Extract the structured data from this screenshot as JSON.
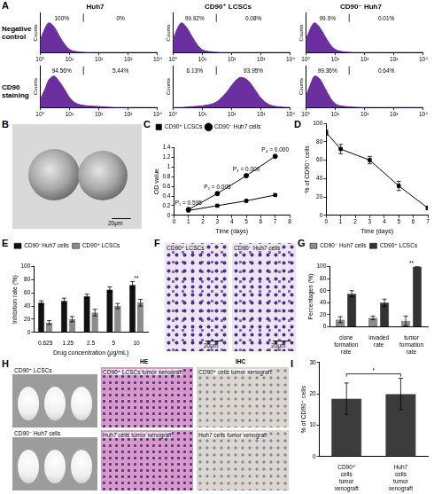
{
  "panel_letters": [
    "A",
    "B",
    "C",
    "D",
    "E",
    "F",
    "G",
    "H",
    "I"
  ],
  "flow_row_labels": [
    "Negative control",
    "CD90 staining"
  ],
  "images": {
    "B": {
      "scale_bar": "20μm"
    },
    "F": {
      "labels": [
        "CD90⁺ LCSCs",
        "CD90⁻ Huh7 cells"
      ],
      "scale_bar": "20μm"
    },
    "H": {
      "headers": [
        "HE",
        "IHC"
      ],
      "row_labels": [
        "CD90⁺ LCSCs",
        "CD90⁻ Huh7 cells"
      ],
      "captions": [
        [
          "CD90⁺ LCSCs tumor xenograft",
          "CD90⁺ cells tumor xenograft"
        ],
        [
          "Huh7 cells tumor xenograft",
          "Huh7 cells tumor xenograft"
        ]
      ]
    }
  },
  "chart_data": [
    {
      "type": "area",
      "title": "Huh7",
      "x": [
        1,
        1.5,
        2,
        3,
        4.5,
        7,
        10,
        15,
        25,
        40,
        70,
        120,
        200,
        350,
        600,
        1000,
        2000,
        5000,
        10000
      ],
      "values": [
        30,
        62,
        75,
        65,
        42,
        20,
        8,
        3,
        1,
        0,
        0,
        0,
        0,
        0,
        0,
        0,
        0,
        0,
        0
      ],
      "color": "#6b2fa0",
      "log": "x",
      "xlim": [
        1,
        10000
      ],
      "xticks": [
        {
          "value": 1,
          "label": "10⁰"
        },
        {
          "value": 10,
          "label": "10¹"
        },
        {
          "value": 100,
          "label": "10²"
        },
        {
          "value": 1000,
          "label": "10³"
        },
        {
          "value": 10000,
          "label": "10⁴"
        }
      ],
      "ylim": [
        0,
        100
      ],
      "yticks": [],
      "tick_labels": "x",
      "y_label": "Counts",
      "gate": 30,
      "annotations": [
        "100%",
        "0%"
      ],
      "grid": false
    },
    {
      "type": "area",
      "title": "CD90⁺ LCSCs",
      "x": [
        1,
        1.5,
        2,
        3,
        4.5,
        7,
        10,
        15,
        25,
        40,
        70,
        120,
        200,
        350,
        600,
        1000,
        2000,
        5000,
        10000
      ],
      "values": [
        32,
        64,
        75,
        62,
        40,
        18,
        7,
        3,
        1,
        0,
        0,
        0,
        0,
        0,
        0,
        0,
        0,
        0,
        0
      ],
      "color": "#6b2fa0",
      "log": "x",
      "xlim": [
        1,
        10000
      ],
      "xticks": [
        {
          "value": 1,
          "label": "10⁰"
        },
        {
          "value": 10,
          "label": "10¹"
        },
        {
          "value": 100,
          "label": "10²"
        },
        {
          "value": 1000,
          "label": "10³"
        },
        {
          "value": 10000,
          "label": "10⁴"
        }
      ],
      "ylim": [
        0,
        100
      ],
      "yticks": [],
      "tick_labels": "x",
      "y_label": "Counts",
      "gate": 30,
      "annotations": [
        "99.92%",
        "0.08%"
      ],
      "grid": false
    },
    {
      "type": "area",
      "title": "CD90⁻ Huh7",
      "x": [
        1,
        1.5,
        2,
        3,
        4.5,
        7,
        10,
        15,
        25,
        40,
        70,
        120,
        200,
        350,
        600,
        1000,
        2000,
        5000,
        10000
      ],
      "values": [
        31,
        63,
        75,
        63,
        41,
        19,
        8,
        3,
        1,
        0,
        0,
        0,
        0,
        0,
        0,
        0,
        0,
        0,
        0
      ],
      "color": "#6b2fa0",
      "log": "x",
      "xlim": [
        1,
        10000
      ],
      "xticks": [
        {
          "value": 1,
          "label": "10⁰"
        },
        {
          "value": 10,
          "label": "10¹"
        },
        {
          "value": 100,
          "label": "10²"
        },
        {
          "value": 1000,
          "label": "10³"
        },
        {
          "value": 10000,
          "label": "10⁴"
        }
      ],
      "ylim": [
        0,
        100
      ],
      "yticks": [],
      "tick_labels": "x",
      "y_label": "Counts",
      "gate": 30,
      "annotations": [
        "99.9%",
        "0.01%"
      ],
      "grid": false
    },
    {
      "type": "area",
      "x": [
        1,
        1.5,
        2,
        3,
        4.5,
        7,
        10,
        15,
        25,
        40,
        70,
        120,
        200,
        350,
        600,
        1000,
        2000,
        5000,
        10000
      ],
      "values": [
        18,
        45,
        66,
        75,
        62,
        42,
        24,
        12,
        6,
        4,
        3,
        2,
        1,
        0,
        0,
        0,
        0,
        0,
        0
      ],
      "color": "#6b2fa0",
      "log": "x",
      "xlim": [
        1,
        10000
      ],
      "xticks": [
        {
          "value": 1,
          "label": "10⁰"
        },
        {
          "value": 10,
          "label": "10¹"
        },
        {
          "value": 100,
          "label": "10²"
        },
        {
          "value": 1000,
          "label": "10³"
        },
        {
          "value": 10000,
          "label": "10⁴"
        }
      ],
      "ylim": [
        0,
        100
      ],
      "yticks": [],
      "tick_labels": "x",
      "y_label": "Counts",
      "gate": 30,
      "annotations": [
        "94.56%",
        "5.44%"
      ],
      "grid": false
    },
    {
      "type": "area",
      "x": [
        1,
        1.5,
        2,
        3,
        4.5,
        7,
        10,
        15,
        25,
        40,
        70,
        120,
        200,
        350,
        600,
        1000,
        2000,
        5000,
        10000
      ],
      "values": [
        0,
        0,
        0,
        1,
        2,
        3,
        4,
        6,
        10,
        20,
        38,
        60,
        72,
        65,
        44,
        22,
        6,
        1,
        0
      ],
      "color": "#6b2fa0",
      "log": "x",
      "xlim": [
        1,
        10000
      ],
      "xticks": [
        {
          "value": 1,
          "label": "10⁰"
        },
        {
          "value": 10,
          "label": "10¹"
        },
        {
          "value": 100,
          "label": "10²"
        },
        {
          "value": 1000,
          "label": "10³"
        },
        {
          "value": 10000,
          "label": "10⁴"
        }
      ],
      "ylim": [
        0,
        100
      ],
      "yticks": [],
      "tick_labels": "x",
      "y_label": "Counts",
      "gate": 30,
      "annotations": [
        "6.13%",
        "93.95%"
      ],
      "grid": false
    },
    {
      "type": "area",
      "x": [
        1,
        1.5,
        2,
        3,
        4.5,
        7,
        10,
        15,
        25,
        40,
        70,
        120,
        200,
        350,
        600,
        1000,
        2000,
        5000,
        10000
      ],
      "values": [
        25,
        58,
        75,
        68,
        46,
        22,
        9,
        4,
        2,
        1,
        0,
        0,
        0,
        0,
        0,
        0,
        0,
        0,
        0
      ],
      "color": "#6b2fa0",
      "log": "x",
      "xlim": [
        1,
        10000
      ],
      "xticks": [
        {
          "value": 1,
          "label": "10⁰"
        },
        {
          "value": 10,
          "label": "10¹"
        },
        {
          "value": 100,
          "label": "10²"
        },
        {
          "value": 1000,
          "label": "10³"
        },
        {
          "value": 10000,
          "label": "10⁴"
        }
      ],
      "ylim": [
        0,
        100
      ],
      "yticks": [],
      "tick_labels": "x",
      "y_label": "Counts",
      "gate": 30,
      "annotations": [
        "99.36%",
        "0.64%"
      ],
      "grid": false
    },
    {
      "type": "line",
      "x": [
        1,
        3,
        5,
        7
      ],
      "series": [
        {
          "name": "CD90⁺ LCSCs",
          "color": "#000000",
          "marker": "square",
          "values": [
            0.1,
            0.2,
            0.3,
            0.42
          ]
        },
        {
          "name": "CD90⁻ Huh7 cells",
          "color": "#000000",
          "marker": "circle",
          "values": [
            0.12,
            0.45,
            0.82,
            1.22
          ]
        }
      ],
      "xlim": [
        0,
        8
      ],
      "xticks": [
        0,
        1,
        2,
        3,
        4,
        5,
        6,
        7,
        8
      ],
      "ylim": [
        0,
        1.4
      ],
      "yticks": [
        0,
        0.2,
        0.4,
        0.6,
        0.8,
        1,
        1.2,
        1.4
      ],
      "x_label": "Time (days)",
      "y_label": "OD value",
      "legend": "top-left",
      "grid": false,
      "annotations": [
        {
          "x": 1,
          "text": "P₁ = 0.595"
        },
        {
          "x": 3,
          "text": "P₂ = 0.005"
        },
        {
          "x": 5,
          "text": "P₃ = 0.000"
        },
        {
          "x": 7,
          "text": "P₄ = 0.000"
        }
      ]
    },
    {
      "type": "line",
      "x": [
        0,
        1,
        3,
        5,
        7
      ],
      "values": [
        90,
        72,
        60,
        32,
        8
      ],
      "errors": [
        3,
        5,
        4,
        5,
        2
      ],
      "color": "#000000",
      "marker": "square",
      "xlim": [
        0,
        7
      ],
      "xticks": [
        0,
        1,
        2,
        3,
        4,
        5,
        6,
        7
      ],
      "ylim": [
        0,
        100
      ],
      "yticks": [
        0,
        20,
        40,
        60,
        80,
        100
      ],
      "x_label": "Time (days)",
      "y_label": "% of CD90⁺ cells",
      "grid": false
    },
    {
      "type": "bar",
      "categories": [
        "0.625",
        "1.25",
        "2.5",
        "5",
        "10"
      ],
      "series": [
        {
          "name": "CD90⁻Huh7 cells",
          "color": "#111111",
          "values": [
            45,
            48,
            55,
            65,
            72
          ],
          "errors": [
            3,
            4,
            3,
            4,
            5
          ]
        },
        {
          "name": "CD90⁺ LCSCs",
          "color": "#8c8c8c",
          "values": [
            15,
            20,
            30,
            40,
            45
          ],
          "errors": [
            3,
            4,
            5,
            4,
            5
          ]
        }
      ],
      "ylim": [
        0,
        100
      ],
      "yticks": [
        0,
        20,
        40,
        60,
        80,
        100
      ],
      "x_label": "Drug concentration (μg/mL)",
      "y_label": "Inhibition rate (%)",
      "legend": "top-left",
      "grid": false,
      "annotations": [
        {
          "text": "**"
        }
      ]
    },
    {
      "type": "bar",
      "categories": [
        "clone formation rate",
        "invaded rate",
        "tumor formation rate"
      ],
      "series": [
        {
          "name": "CD90⁻ Huh7 cells",
          "color": "#8c8c8c",
          "values": [
            12,
            15,
            10
          ],
          "errors": [
            5,
            3,
            8
          ]
        },
        {
          "name": "CD90⁺ LCSCs",
          "color": "#333333",
          "values": [
            55,
            40,
            100
          ],
          "errors": [
            5,
            6,
            0
          ]
        }
      ],
      "ylim": [
        0,
        100
      ],
      "yticks": [
        0,
        20,
        40,
        60,
        80,
        100
      ],
      "y_label": "Percentages (%)",
      "legend": "top-left",
      "grid": false,
      "annotations": [
        {
          "text": "**"
        }
      ]
    },
    {
      "type": "bar",
      "categories": [
        "CD90⁺ cells tumor xenograft",
        "Huh7 cells tumor xenograft"
      ],
      "values": [
        18.5,
        20
      ],
      "errors": [
        5,
        5
      ],
      "color": "#3c3c3c",
      "ylim": [
        0,
        30
      ],
      "yticks": [
        0,
        10,
        20,
        30
      ],
      "y_label": "% of CD90⁺ cells",
      "grid": false,
      "annotations": [
        {
          "text": "*"
        }
      ]
    }
  ]
}
